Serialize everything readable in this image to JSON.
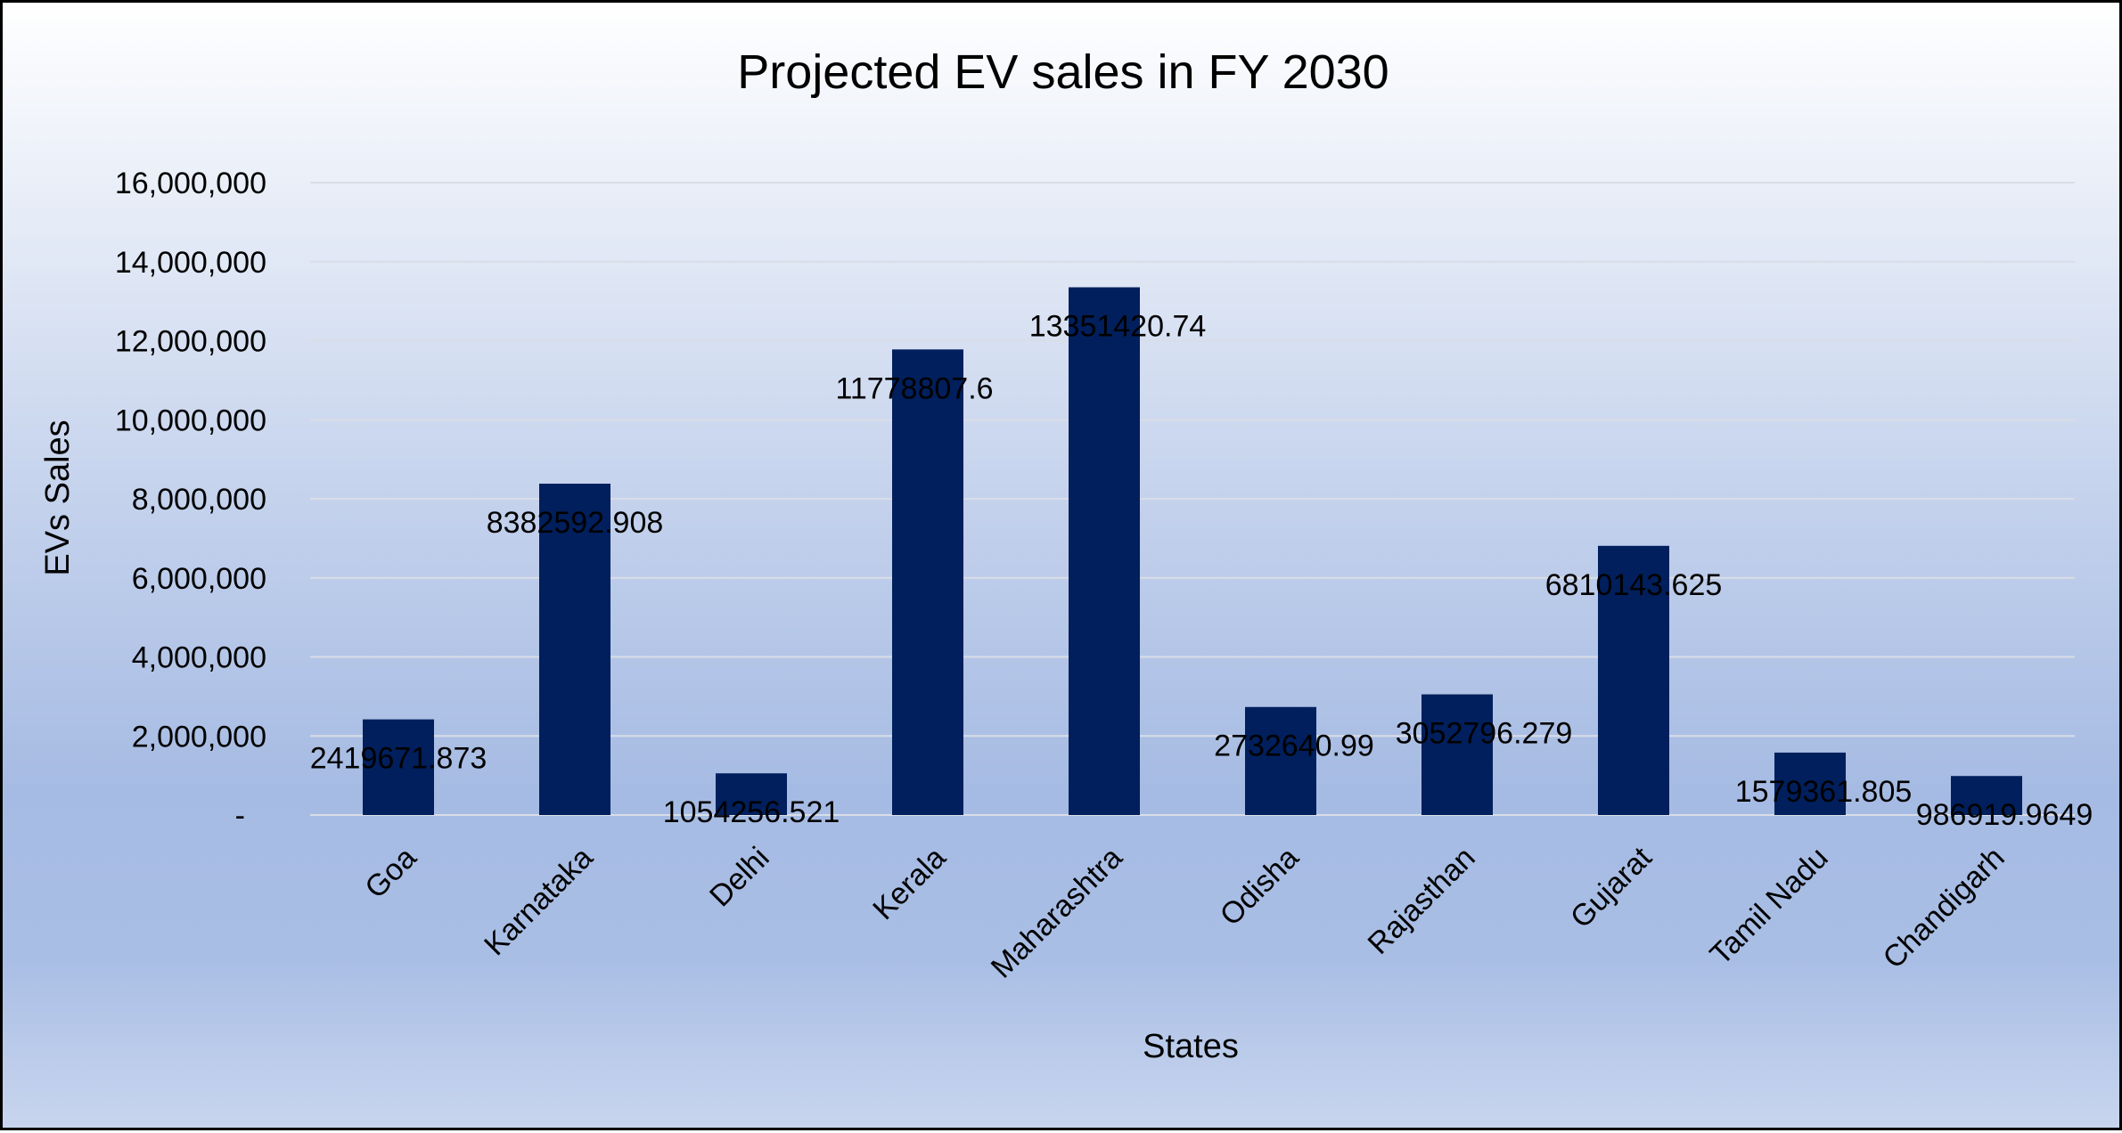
{
  "chart_data": {
    "type": "bar",
    "title": "Projected EV sales in FY 2030",
    "xlabel": "States",
    "ylabel": "EVs Sales",
    "categories": [
      "Goa",
      "Karnataka",
      "Delhi",
      "Kerala",
      "Maharashtra",
      "Odisha",
      "Rajasthan",
      "Gujarat",
      "Tamil Nadu",
      "Chandigarh"
    ],
    "values": [
      2419671.873,
      8382592.908,
      1054256.521,
      11778807.6,
      13351420.74,
      2732640.99,
      3052796.279,
      6810143.625,
      1579361.805,
      986919.9649
    ],
    "data_labels": [
      "2419671.873",
      "8382592.908",
      "1054256.521",
      "11778807.6",
      "13351420.74",
      "2732640.99",
      "3052796.279",
      "6810143.625",
      "1579361.805",
      "986919.9649"
    ],
    "ylim": [
      0,
      16000000
    ],
    "y_ticks": [
      0,
      2000000,
      4000000,
      6000000,
      8000000,
      10000000,
      12000000,
      14000000,
      16000000
    ],
    "y_tick_labels": [
      "-",
      "2,000,000",
      "4,000,000",
      "6,000,000",
      "8,000,000",
      "10,000,000",
      "12,000,000",
      "14,000,000",
      "16,000,000"
    ],
    "grid": true,
    "legend": "none",
    "bar_color": "#001f5c"
  }
}
